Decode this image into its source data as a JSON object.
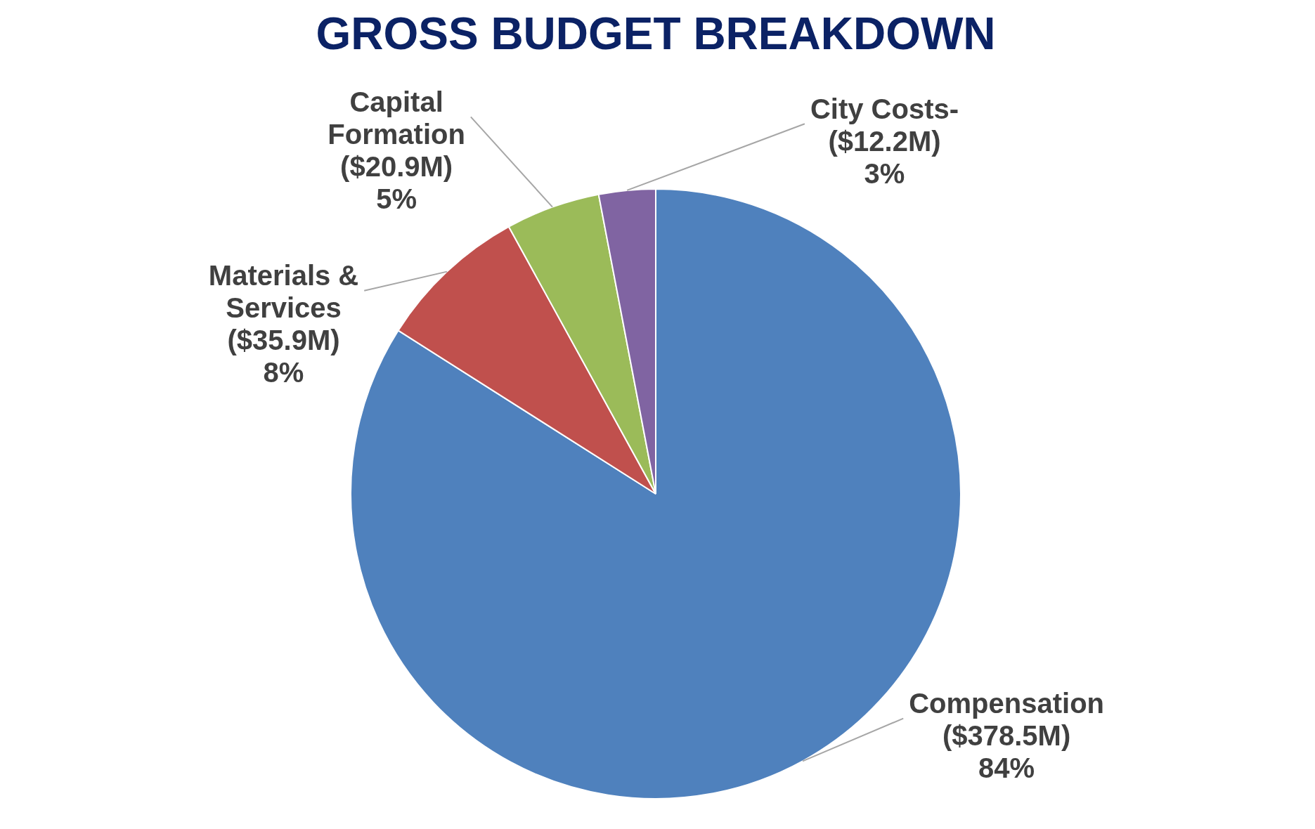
{
  "chart_data": {
    "type": "pie",
    "title": "GROSS BUDGET BREAKDOWN",
    "categories": [
      "Compensation",
      "Materials & Services",
      "Capital Formation",
      "City Costs-"
    ],
    "values": [
      84,
      8,
      5,
      3
    ],
    "colors": [
      "#4f81bd",
      "#c0504d",
      "#9bbb59",
      "#8064a2"
    ],
    "value_labels": [
      "($378.5M)\n84%",
      "($35.9M)\n8%",
      "($20.9M)\n5%",
      "($12.2M)\n3%"
    ],
    "legend": false
  }
}
